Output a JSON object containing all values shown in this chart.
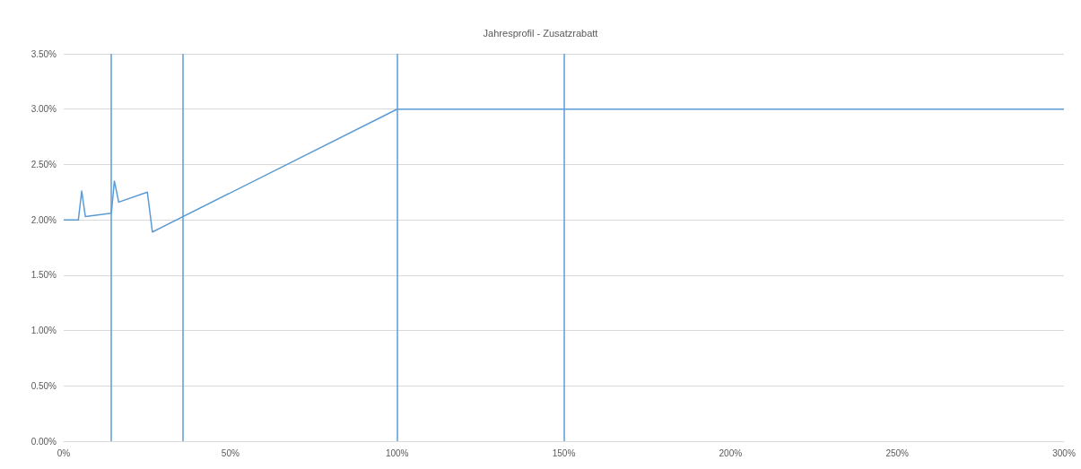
{
  "chart_data": {
    "type": "line",
    "title": "Jahresprofil - Zusatzrabatt",
    "series": [
      {
        "color": "#5b9bd5",
        "x": [
          0,
          4.4,
          5.4,
          6.5,
          14.3,
          15.2,
          16.5,
          25.1,
          26.6,
          100,
          300
        ],
        "values": [
          2.0,
          2.0,
          2.26,
          2.03,
          2.06,
          2.35,
          2.16,
          2.25,
          1.89,
          3.0,
          3.0
        ]
      }
    ],
    "ref_lines": [
      {
        "axis": "x",
        "value": 14.3,
        "color": "#5b9bd5",
        "line_style": "solid"
      },
      {
        "axis": "x",
        "value": 35.8,
        "color": "#5b9bd5",
        "line_style": "solid"
      },
      {
        "axis": "x",
        "value": 100,
        "color": "#5b9bd5",
        "line_style": "solid"
      },
      {
        "axis": "x",
        "value": 150,
        "color": "#5b9bd5",
        "line_style": "solid"
      }
    ],
    "xlim": [
      0,
      300
    ],
    "xticks": [
      {
        "value": 0,
        "label": "0%"
      },
      {
        "value": 50,
        "label": "50%"
      },
      {
        "value": 100,
        "label": "100%"
      },
      {
        "value": 150,
        "label": "150%"
      },
      {
        "value": 200,
        "label": "200%"
      },
      {
        "value": 250,
        "label": "250%"
      },
      {
        "value": 300,
        "label": "300%"
      }
    ],
    "ylim": [
      0,
      3.5
    ],
    "yticks": [
      {
        "value": 0,
        "label": "0.00%"
      },
      {
        "value": 0.5,
        "label": "0.50%"
      },
      {
        "value": 1,
        "label": "1.00%"
      },
      {
        "value": 1.5,
        "label": "1.50%"
      },
      {
        "value": 2,
        "label": "2.00%"
      },
      {
        "value": 2.5,
        "label": "2.50%"
      },
      {
        "value": 3,
        "label": "3.00%"
      },
      {
        "value": 3.5,
        "label": "3.50%"
      }
    ],
    "grid": "y",
    "marker": "none",
    "line_style": "solid"
  }
}
